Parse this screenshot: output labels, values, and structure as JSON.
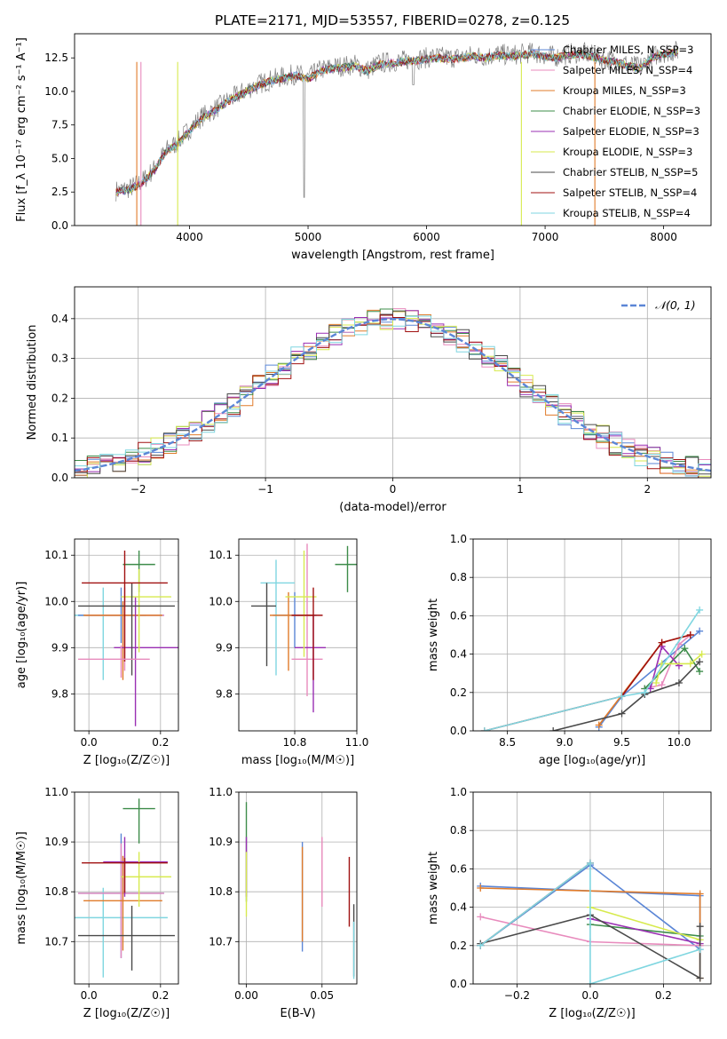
{
  "figure_title": "PLATE=2171, MJD=53557, FIBERID=0278, z=0.125",
  "colors": {
    "chabrier_miles": "#5b86d6",
    "salpeter_miles": "#e88bbd",
    "kroupa_miles": "#e07b2a",
    "chabrier_elodie": "#3d8c4a",
    "salpeter_elodie": "#9a2fb3",
    "kroupa_elodie": "#d7ea4e",
    "chabrier_stelib": "#4a4a4a",
    "salpeter_stelib": "#a01010",
    "kroupa_stelib": "#7fd6e0",
    "data": "#808080"
  },
  "chart_data": [
    {
      "id": "spectrum",
      "type": "line",
      "title": "PLATE=2171, MJD=53557, FIBERID=0278, z=0.125",
      "xlabel": "wavelength [Angstrom, rest frame]",
      "ylabel": "Flux [f_λ 10⁻¹⁷ erg cm⁻² s⁻¹ A⁻¹]",
      "xlim": [
        3030,
        8400
      ],
      "ylim": [
        0,
        14.3
      ],
      "xticks": [
        4000,
        5000,
        6000,
        7000,
        8000
      ],
      "yticks": [
        0.0,
        2.5,
        5.0,
        7.5,
        10.0,
        12.5
      ],
      "grid": false,
      "legend_position": "right",
      "spectrum_anchor": {
        "x": [
          3400,
          3500,
          3600,
          3700,
          3800,
          3900,
          4000,
          4100,
          4200,
          4300,
          4400,
          4500,
          4600,
          4700,
          4800,
          4900,
          5000,
          5100,
          5200,
          5300,
          5400,
          5500,
          5600,
          5700,
          5800,
          5900,
          6000,
          6100,
          6200,
          6300,
          6400,
          6500,
          6600,
          6700,
          6800,
          6900,
          7000,
          7100,
          7200,
          7300,
          7400,
          7500,
          7600,
          7700,
          7800,
          7900,
          8000,
          8100
        ],
        "y": [
          2.6,
          2.8,
          3.3,
          4.2,
          5.6,
          6.2,
          7.2,
          8.1,
          8.6,
          9.2,
          9.7,
          10.2,
          10.6,
          10.9,
          11.1,
          11.3,
          11.0,
          11.6,
          11.8,
          11.9,
          12.0,
          11.6,
          12.1,
          12.2,
          12.3,
          12.4,
          12.5,
          12.6,
          12.5,
          12.6,
          12.7,
          12.6,
          12.8,
          12.7,
          12.8,
          12.9,
          12.7,
          12.6,
          12.8,
          12.9,
          12.7,
          12.4,
          12.3,
          12.0,
          11.8,
          12.6,
          12.9,
          13.0
        ]
      },
      "series": [
        {
          "name": "Chabrier MILES, N_SSP=3",
          "color": "#5b86d6"
        },
        {
          "name": "Salpeter MILES, N_SSP=4",
          "color": "#e88bbd"
        },
        {
          "name": "Kroupa MILES, N_SSP=3",
          "color": "#e07b2a"
        },
        {
          "name": "Chabrier ELODIE, N_SSP=3",
          "color": "#3d8c4a"
        },
        {
          "name": "Salpeter ELODIE, N_SSP=3",
          "color": "#9a2fb3"
        },
        {
          "name": "Kroupa ELODIE, N_SSP=3",
          "color": "#d7ea4e"
        },
        {
          "name": "Chabrier STELIB, N_SSP=5",
          "color": "#4a4a4a"
        },
        {
          "name": "Salpeter STELIB, N_SSP=4",
          "color": "#a01010"
        },
        {
          "name": "Kroupa STELIB, N_SSP=4",
          "color": "#7fd6e0"
        }
      ]
    },
    {
      "id": "residuals",
      "type": "line",
      "xlabel": "(data-model)/error",
      "ylabel": "Normed distribution",
      "xlim": [
        -2.5,
        2.5
      ],
      "ylim": [
        0,
        0.48
      ],
      "xticks": [
        -2,
        -1,
        0,
        1,
        2
      ],
      "yticks": [
        0.0,
        0.1,
        0.2,
        0.3,
        0.4
      ],
      "grid": true,
      "legend_position": "top-right",
      "legend": "𝒩(0, 1)",
      "gaussian": {
        "mean": 0,
        "sigma": 1
      }
    },
    {
      "id": "age_vs_Z",
      "type": "scatter",
      "xlabel": "Z [log₁₀(Z/Z☉)]",
      "ylabel": "age  [log₁₀(age/yr)]",
      "xlim": [
        -0.04,
        0.25
      ],
      "ylim": [
        9.72,
        10.135
      ],
      "xticks": [
        0.0,
        0.2
      ],
      "yticks": [
        9.8,
        9.9,
        10.0,
        10.1
      ],
      "grid": true,
      "points": [
        {
          "x": 0.04,
          "y": 9.97,
          "xerr": [
            0.12,
            0.12
          ],
          "yerr": [
            0.14,
            0.06
          ],
          "series": "kroupa_stelib"
        },
        {
          "x": 0.09,
          "y": 9.97,
          "xerr": [
            0.12,
            0.12
          ],
          "yerr": [
            0.06,
            0.06
          ],
          "series": "chabrier_miles"
        },
        {
          "x": 0.1,
          "y": 9.97,
          "xerr": [
            0.11,
            0.11
          ],
          "yerr": [
            0.12,
            0.06
          ],
          "series": "salpeter_miles"
        },
        {
          "x": 0.095,
          "y": 9.97,
          "xerr": [
            0.11,
            0.11
          ],
          "yerr": [
            0.14,
            0.03
          ],
          "series": "kroupa_miles"
        },
        {
          "x": 0.14,
          "y": 10.08,
          "xerr": [
            0.045,
            0.045
          ],
          "yerr": [
            0.06,
            0.03
          ],
          "series": "chabrier_elodie"
        },
        {
          "x": 0.13,
          "y": 9.9,
          "xerr": [
            0.06,
            0.12
          ],
          "yerr": [
            0.17,
            0.11
          ],
          "series": "salpeter_elodie"
        },
        {
          "x": 0.14,
          "y": 10.01,
          "xerr": [
            0.05,
            0.09
          ],
          "yerr": [
            0.12,
            0.06
          ],
          "series": "kroupa_elodie"
        },
        {
          "x": 0.12,
          "y": 9.99,
          "xerr": [
            0.15,
            0.12
          ],
          "yerr": [
            0.15,
            0.05
          ],
          "series": "chabrier_stelib"
        },
        {
          "x": 0.1,
          "y": 10.04,
          "xerr": [
            0.12,
            0.12
          ],
          "yerr": [
            0.17,
            0.07
          ],
          "series": "salpeter_stelib"
        },
        {
          "x": 0.09,
          "y": 9.875,
          "xerr": [
            0.12,
            0.08
          ],
          "yerr": [
            0.04,
            0.03
          ],
          "series": "salpeter_miles"
        }
      ]
    },
    {
      "id": "age_vs_mass",
      "type": "scatter",
      "xlabel": "mass [log₁₀(M/M☉)]",
      "ylabel": "",
      "xlim": [
        10.62,
        11.0
      ],
      "ylim": [
        9.72,
        10.135
      ],
      "xticks": [
        10.8,
        11.0
      ],
      "yticks": [
        9.8,
        9.9,
        10.0,
        10.1
      ],
      "grid": true,
      "points": [
        {
          "x": 10.74,
          "y": 10.04,
          "xerr": [
            0.05,
            0.06
          ],
          "yerr": [
            0.2,
            0.05
          ],
          "series": "kroupa_stelib"
        },
        {
          "x": 10.8,
          "y": 9.97,
          "xerr": [
            0.07,
            0.07
          ],
          "yerr": [
            0.07,
            0.05
          ],
          "series": "chabrier_miles"
        },
        {
          "x": 10.84,
          "y": 9.875,
          "xerr": [
            0.05,
            0.05
          ],
          "yerr": [
            0.08,
            0.25
          ],
          "series": "salpeter_miles"
        },
        {
          "x": 10.78,
          "y": 9.97,
          "xerr": [
            0.06,
            0.08
          ],
          "yerr": [
            0.12,
            0.05
          ],
          "series": "kroupa_miles"
        },
        {
          "x": 10.97,
          "y": 10.08,
          "xerr": [
            0.04,
            0.04
          ],
          "yerr": [
            0.06,
            0.04
          ],
          "series": "chabrier_elodie"
        },
        {
          "x": 10.86,
          "y": 9.9,
          "xerr": [
            0.06,
            0.04
          ],
          "yerr": [
            0.14,
            0.07
          ],
          "series": "salpeter_elodie"
        },
        {
          "x": 10.83,
          "y": 10.01,
          "xerr": [
            0.06,
            0.04
          ],
          "yerr": [
            0.13,
            0.1
          ],
          "series": "kroupa_elodie"
        },
        {
          "x": 10.71,
          "y": 9.99,
          "xerr": [
            0.05,
            0.03
          ],
          "yerr": [
            0.13,
            0.05
          ],
          "series": "chabrier_stelib"
        },
        {
          "x": 10.86,
          "y": 9.97,
          "xerr": [
            0.07,
            0.03
          ],
          "yerr": [
            0.14,
            0.06
          ],
          "series": "salpeter_stelib"
        }
      ]
    },
    {
      "id": "mass_weight_vs_age",
      "type": "line",
      "xlabel": "age  [log₁₀(age/yr)]",
      "ylabel": "mass weight",
      "xlim": [
        8.2,
        10.28
      ],
      "ylim": [
        0,
        1.0
      ],
      "xticks": [
        8.5,
        9.0,
        9.5,
        10.0
      ],
      "yticks": [
        0.0,
        0.2,
        0.4,
        0.6,
        0.8,
        1.0
      ],
      "grid": true,
      "series": [
        {
          "name": "chabrier_miles",
          "x": [
            9.3,
            9.5,
            10.18
          ],
          "y": [
            0.02,
            0.18,
            0.52
          ]
        },
        {
          "name": "salpeter_miles",
          "x": [
            9.7,
            9.85,
            10.0,
            10.1
          ],
          "y": [
            0.22,
            0.24,
            0.45,
            0.5
          ]
        },
        {
          "name": "kroupa_miles",
          "x": [
            9.3,
            9.85,
            10.1
          ],
          "y": [
            0.03,
            0.46,
            0.5
          ]
        },
        {
          "name": "chabrier_elodie",
          "x": [
            9.7,
            10.05,
            10.18
          ],
          "y": [
            0.22,
            0.43,
            0.31
          ]
        },
        {
          "name": "salpeter_elodie",
          "x": [
            9.75,
            9.85,
            10.0
          ],
          "y": [
            0.22,
            0.44,
            0.34
          ]
        },
        {
          "name": "kroupa_elodie",
          "x": [
            9.8,
            9.85,
            10.1,
            10.2
          ],
          "y": [
            0.25,
            0.35,
            0.35,
            0.4
          ]
        },
        {
          "name": "chabrier_stelib",
          "x": [
            8.9,
            9.5,
            9.7,
            10.0,
            10.18
          ],
          "y": [
            0.0,
            0.09,
            0.19,
            0.25,
            0.36
          ]
        },
        {
          "name": "salpeter_stelib",
          "x": [
            8.3,
            9.5,
            9.85,
            10.1
          ],
          "y": [
            0.0,
            0.18,
            0.46,
            0.5
          ]
        },
        {
          "name": "kroupa_stelib",
          "x": [
            8.3,
            9.5,
            9.7,
            10.18
          ],
          "y": [
            0.0,
            0.18,
            0.2,
            0.63
          ]
        }
      ]
    },
    {
      "id": "mass_vs_Z",
      "type": "scatter",
      "xlabel": "Z [log₁₀(Z/Z☉)]",
      "ylabel": "mass [log₁₀(M/M☉)]",
      "xlim": [
        -0.04,
        0.25
      ],
      "ylim": [
        10.615,
        11.0
      ],
      "xticks": [
        0.0,
        0.2
      ],
      "yticks": [
        10.7,
        10.8,
        10.9,
        11.0
      ],
      "grid": true,
      "points": [
        {
          "x": 0.04,
          "y": 10.748,
          "xerr": [
            0.12,
            0.18
          ],
          "yerr": [
            0.12,
            0.06
          ],
          "series": "kroupa_stelib"
        },
        {
          "x": 0.09,
          "y": 10.797,
          "xerr": [
            0.12,
            0.12
          ],
          "yerr": [
            0.13,
            0.12
          ],
          "series": "chabrier_miles"
        },
        {
          "x": 0.09,
          "y": 10.797,
          "xerr": [
            0.12,
            0.12
          ],
          "yerr": [
            0.13,
            0.1
          ],
          "series": "salpeter_miles"
        },
        {
          "x": 0.095,
          "y": 10.782,
          "xerr": [
            0.11,
            0.11
          ],
          "yerr": [
            0.1,
            0.09
          ],
          "series": "kroupa_miles"
        },
        {
          "x": 0.14,
          "y": 10.967,
          "xerr": [
            0.045,
            0.045
          ],
          "yerr": [
            0.07,
            0.02
          ],
          "series": "chabrier_elodie"
        },
        {
          "x": 0.1,
          "y": 10.86,
          "xerr": [
            0.06,
            0.12
          ],
          "yerr": [
            0.07,
            0.05
          ],
          "series": "salpeter_elodie"
        },
        {
          "x": 0.14,
          "y": 10.83,
          "xerr": [
            0.05,
            0.09
          ],
          "yerr": [
            0.06,
            0.05
          ],
          "series": "kroupa_elodie"
        },
        {
          "x": 0.12,
          "y": 10.712,
          "xerr": [
            0.15,
            0.12
          ],
          "yerr": [
            0.07,
            0.06
          ],
          "series": "chabrier_stelib"
        },
        {
          "x": 0.1,
          "y": 10.858,
          "xerr": [
            0.12,
            0.12
          ],
          "yerr": [
            0.06,
            0.01
          ],
          "series": "salpeter_stelib"
        }
      ]
    },
    {
      "id": "mass_vs_EBV",
      "type": "scatter",
      "xlabel": "E(B-V)",
      "ylabel": "",
      "xlim": [
        -0.005,
        0.073
      ],
      "ylim": [
        10.615,
        11.0
      ],
      "xticks": [
        0.0,
        0.05
      ],
      "yticks": [
        10.7,
        10.8,
        10.9,
        11.0
      ],
      "grid": true,
      "points": [
        {
          "x": 0.0,
          "y": 10.9,
          "yerr": [
            0.12,
            0.08
          ],
          "series": "chabrier_elodie"
        },
        {
          "x": 0.0,
          "y": 10.86,
          "yerr": [
            0.07,
            0.05
          ],
          "series": "salpeter_elodie"
        },
        {
          "x": 0.0,
          "y": 10.82,
          "yerr": [
            0.07,
            0.06
          ],
          "series": "kroupa_elodie"
        },
        {
          "x": 0.037,
          "y": 10.8,
          "yerr": [
            0.12,
            0.1
          ],
          "series": "chabrier_miles"
        },
        {
          "x": 0.037,
          "y": 10.8,
          "yerr": [
            0.1,
            0.09
          ],
          "series": "kroupa_miles"
        },
        {
          "x": 0.05,
          "y": 10.84,
          "yerr": [
            0.07,
            0.07
          ],
          "series": "salpeter_miles"
        },
        {
          "x": 0.068,
          "y": 10.8,
          "yerr": [
            0.07,
            0.07
          ],
          "series": "salpeter_stelib"
        },
        {
          "x": 0.071,
          "y": 10.7,
          "yerr": [
            0.07,
            0.075
          ],
          "series": "chabrier_stelib"
        },
        {
          "x": 0.071,
          "y": 10.69,
          "yerr": [
            0.065,
            0.05
          ],
          "series": "kroupa_stelib"
        }
      ]
    },
    {
      "id": "mass_weight_vs_Z",
      "type": "line",
      "xlabel": "Z [log₁₀(Z/Z☉)]",
      "ylabel": "mass weight",
      "xlim": [
        -0.32,
        0.33
      ],
      "ylim": [
        0,
        1.0
      ],
      "xticks": [
        -0.2,
        0.0,
        0.2
      ],
      "yticks": [
        0.0,
        0.2,
        0.4,
        0.6,
        0.8,
        1.0
      ],
      "grid": true,
      "series": [
        {
          "name": "chabrier_miles",
          "x": [
            -0.3,
            0.3,
            0.3,
            0.0,
            -0.3
          ],
          "y": [
            0.51,
            0.46,
            0.18,
            0.62,
            0.2
          ]
        },
        {
          "name": "salpeter_miles",
          "x": [
            -0.3,
            0.0,
            0.3
          ],
          "y": [
            0.35,
            0.22,
            0.2
          ]
        },
        {
          "name": "kroupa_miles",
          "x": [
            -0.3,
            0.3,
            0.3
          ],
          "y": [
            0.5,
            0.47,
            0.03
          ]
        },
        {
          "name": "chabrier_elodie",
          "x": [
            0.0,
            0.3
          ],
          "y": [
            0.31,
            0.25
          ]
        },
        {
          "name": "salpeter_elodie",
          "x": [
            0.0,
            0.3
          ],
          "y": [
            0.34,
            0.21
          ]
        },
        {
          "name": "kroupa_elodie",
          "x": [
            0.0,
            0.3
          ],
          "y": [
            0.4,
            0.23
          ]
        },
        {
          "name": "chabrier_stelib",
          "x": [
            -0.3,
            0.0,
            0.3,
            0.3
          ],
          "y": [
            0.21,
            0.36,
            0.03,
            0.3
          ]
        },
        {
          "name": "salpeter_stelib",
          "x": [
            -0.3,
            0.0
          ],
          "y": [
            0.2,
            0.63
          ]
        },
        {
          "name": "kroupa_stelib",
          "x": [
            -0.3,
            0.0,
            0.0,
            0.3
          ],
          "y": [
            0.2,
            0.63,
            0.0,
            0.18
          ]
        }
      ]
    }
  ]
}
